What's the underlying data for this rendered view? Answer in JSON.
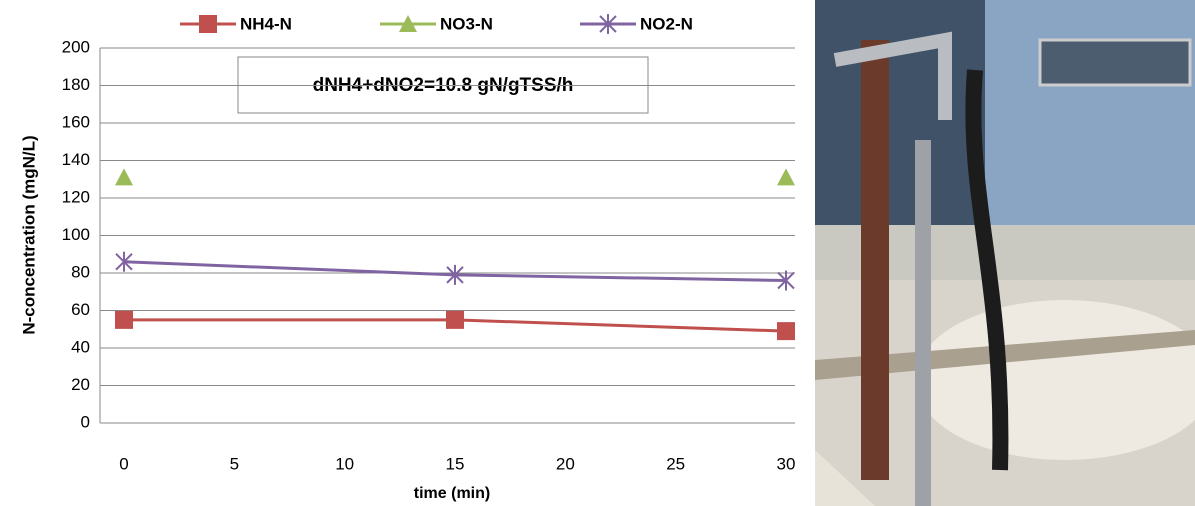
{
  "chart_data": {
    "type": "line",
    "x": [
      0,
      15,
      30
    ],
    "series": [
      {
        "name": "NH4-N",
        "color": "#c0504d",
        "marker": "square",
        "values": [
          55,
          55,
          49
        ]
      },
      {
        "name": "NO3-N",
        "color": "#9bbb59",
        "marker": "triangle",
        "values": [
          131,
          null,
          131
        ]
      },
      {
        "name": "NO2-N",
        "color": "#8064a2",
        "marker": "star",
        "values": [
          86,
          79,
          76
        ]
      }
    ],
    "annotation": "dNH4+dNO2=10.8 gN/gTSS/h",
    "xlabel": "time (min)",
    "ylabel": "N-concentration (mgN/L)",
    "xlim": [
      0,
      30
    ],
    "xticks": [
      0,
      5,
      10,
      15,
      20,
      25,
      30
    ],
    "ylim": [
      0,
      200
    ],
    "yticks": [
      0,
      20,
      40,
      60,
      80,
      100,
      120,
      140,
      160,
      180,
      200
    ],
    "grid": true,
    "legend": "top"
  }
}
